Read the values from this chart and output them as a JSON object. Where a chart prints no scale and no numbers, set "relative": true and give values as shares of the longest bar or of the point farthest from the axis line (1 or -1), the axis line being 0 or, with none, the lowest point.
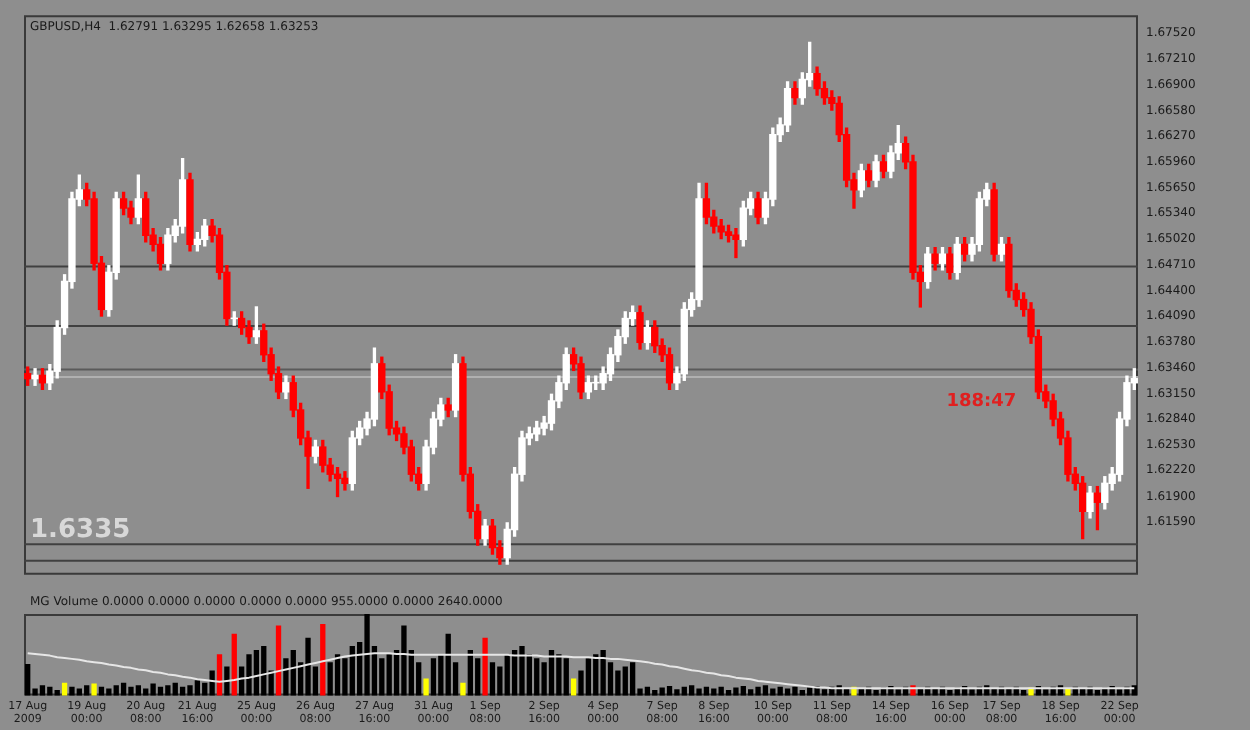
{
  "chart_data": [
    {
      "type": "candlestick",
      "tick_labels": "y",
      "grid": false,
      "ylim": [
        1.6095,
        1.6774
      ],
      "yticks": [
        {
          "value": 1.6752,
          "label": "1.67520"
        },
        {
          "value": 1.6721,
          "label": "1.67210"
        },
        {
          "value": 1.669,
          "label": "1.66900"
        },
        {
          "value": 1.6658,
          "label": "1.66580"
        },
        {
          "value": 1.6627,
          "label": "1.66270"
        },
        {
          "value": 1.6596,
          "label": "1.65960"
        },
        {
          "value": 1.6565,
          "label": "1.65650"
        },
        {
          "value": 1.6534,
          "label": "1.65340"
        },
        {
          "value": 1.6502,
          "label": "1.65020"
        },
        {
          "value": 1.6471,
          "label": "1.64710"
        },
        {
          "value": 1.644,
          "label": "1.64400"
        },
        {
          "value": 1.6409,
          "label": "1.64090"
        },
        {
          "value": 1.6378,
          "label": "1.63780"
        },
        {
          "value": 1.6346,
          "label": "1.63460"
        },
        {
          "value": 1.6315,
          "label": "1.63150"
        },
        {
          "value": 1.6284,
          "label": "1.62840"
        },
        {
          "value": 1.6253,
          "label": "1.62530"
        },
        {
          "value": 1.6222,
          "label": "1.62220"
        },
        {
          "value": 1.619,
          "label": "1.61900"
        },
        {
          "value": 1.6159,
          "label": "1.61590"
        }
      ],
      "categories": [
        null,
        null,
        null,
        null,
        null,
        null,
        null,
        null,
        null,
        null,
        null,
        null,
        null,
        null,
        null,
        null,
        null,
        null,
        null,
        null,
        null,
        null,
        null,
        null,
        null,
        null,
        null,
        null,
        null,
        null,
        null,
        null,
        null,
        null,
        null,
        null,
        null,
        null,
        null,
        null,
        null,
        null,
        null,
        null,
        null,
        null,
        null,
        null,
        null,
        null,
        null,
        null,
        null,
        null,
        null,
        null,
        null,
        null,
        null,
        null,
        null,
        null,
        null,
        null,
        null,
        null,
        null,
        null,
        null,
        null,
        null,
        null,
        null,
        null,
        null,
        null,
        null,
        null,
        null,
        null,
        null,
        null,
        null,
        null,
        null,
        null,
        null,
        null,
        null,
        null,
        null,
        null,
        null,
        null,
        null,
        null,
        null,
        null,
        null,
        null,
        null,
        null,
        null,
        null,
        null,
        null,
        null,
        null,
        null,
        null,
        null,
        null,
        null,
        null,
        null,
        null,
        null,
        null,
        null,
        null,
        null,
        null,
        null,
        null,
        null,
        null,
        null,
        null,
        null,
        null,
        null,
        null,
        null,
        null,
        null,
        null,
        null,
        null,
        null,
        null,
        null,
        null,
        null,
        null,
        null,
        null,
        null,
        null,
        null,
        null,
        null
      ],
      "ohlc": [
        [
          1.6339,
          1.6347,
          1.6325,
          1.6333
        ],
        [
          1.6333,
          1.6345,
          1.6325,
          1.6337
        ],
        [
          1.6337,
          1.6345,
          1.632,
          1.6328
        ],
        [
          1.6328,
          1.635,
          1.632,
          1.6342
        ],
        [
          1.6342,
          1.6403,
          1.6334,
          1.6395
        ],
        [
          1.6395,
          1.6459,
          1.6387,
          1.6451
        ],
        [
          1.6451,
          1.6559,
          1.6443,
          1.6551
        ],
        [
          1.6551,
          1.658,
          1.6543,
          1.6562
        ],
        [
          1.6562,
          1.657,
          1.6543,
          1.6551
        ],
        [
          1.6551,
          1.6559,
          1.6465,
          1.6473
        ],
        [
          1.6473,
          1.6481,
          1.6409,
          1.6417
        ],
        [
          1.6417,
          1.647,
          1.6409,
          1.6462
        ],
        [
          1.6462,
          1.6559,
          1.6454,
          1.6551
        ],
        [
          1.6551,
          1.6559,
          1.6532,
          1.654
        ],
        [
          1.654,
          1.6548,
          1.6521,
          1.6529
        ],
        [
          1.6529,
          1.658,
          1.6521,
          1.6551
        ],
        [
          1.6551,
          1.6559,
          1.6499,
          1.6507
        ],
        [
          1.6507,
          1.6515,
          1.6488,
          1.6496
        ],
        [
          1.6496,
          1.6504,
          1.6465,
          1.6473
        ],
        [
          1.6473,
          1.6515,
          1.6465,
          1.6507
        ],
        [
          1.6507,
          1.6526,
          1.6499,
          1.6518
        ],
        [
          1.6518,
          1.66,
          1.651,
          1.6574
        ],
        [
          1.6574,
          1.6582,
          1.6488,
          1.6496
        ],
        [
          1.6496,
          1.651,
          1.6488,
          1.6502
        ],
        [
          1.6502,
          1.6526,
          1.6494,
          1.6518
        ],
        [
          1.6518,
          1.6526,
          1.6499,
          1.6507
        ],
        [
          1.6507,
          1.6515,
          1.6454,
          1.6462
        ],
        [
          1.6462,
          1.647,
          1.6398,
          1.6406
        ],
        [
          1.6406,
          1.6414,
          1.6398,
          1.6406
        ],
        [
          1.6406,
          1.6414,
          1.6387,
          1.6395
        ],
        [
          1.6395,
          1.6403,
          1.6376,
          1.6384
        ],
        [
          1.6384,
          1.642,
          1.6376,
          1.6391
        ],
        [
          1.6391,
          1.6399,
          1.6354,
          1.6362
        ],
        [
          1.6362,
          1.637,
          1.6331,
          1.6339
        ],
        [
          1.6339,
          1.6347,
          1.6309,
          1.6317
        ],
        [
          1.6317,
          1.6336,
          1.6309,
          1.6328
        ],
        [
          1.6328,
          1.6336,
          1.6287,
          1.6295
        ],
        [
          1.6295,
          1.6303,
          1.6253,
          1.6261
        ],
        [
          1.6261,
          1.6269,
          1.62,
          1.6239
        ],
        [
          1.6239,
          1.6258,
          1.6231,
          1.625
        ],
        [
          1.625,
          1.6258,
          1.622,
          1.6228
        ],
        [
          1.6228,
          1.6236,
          1.6209,
          1.6217
        ],
        [
          1.6217,
          1.6225,
          1.619,
          1.6212
        ],
        [
          1.6212,
          1.622,
          1.6198,
          1.6206
        ],
        [
          1.6206,
          1.6269,
          1.6198,
          1.6261
        ],
        [
          1.6261,
          1.6281,
          1.6253,
          1.6273
        ],
        [
          1.6273,
          1.6292,
          1.6265,
          1.6284
        ],
        [
          1.6284,
          1.637,
          1.6276,
          1.6351
        ],
        [
          1.6351,
          1.6359,
          1.6309,
          1.6317
        ],
        [
          1.6317,
          1.6325,
          1.6265,
          1.6273
        ],
        [
          1.6273,
          1.6281,
          1.6258,
          1.6266
        ],
        [
          1.6266,
          1.6274,
          1.6242,
          1.625
        ],
        [
          1.625,
          1.6258,
          1.6209,
          1.6217
        ],
        [
          1.6217,
          1.6225,
          1.6198,
          1.6206
        ],
        [
          1.6206,
          1.6258,
          1.6198,
          1.625
        ],
        [
          1.625,
          1.6292,
          1.6242,
          1.6284
        ],
        [
          1.6284,
          1.6309,
          1.6276,
          1.6301
        ],
        [
          1.6301,
          1.6309,
          1.6287,
          1.6295
        ],
        [
          1.6295,
          1.6362,
          1.6287,
          1.6351
        ],
        [
          1.6351,
          1.6359,
          1.6209,
          1.6217
        ],
        [
          1.6217,
          1.6225,
          1.6164,
          1.6172
        ],
        [
          1.6172,
          1.618,
          1.6131,
          1.6139
        ],
        [
          1.6139,
          1.6162,
          1.6131,
          1.6154
        ],
        [
          1.6154,
          1.6162,
          1.612,
          1.6128
        ],
        [
          1.6128,
          1.6136,
          1.6108,
          1.6116
        ],
        [
          1.6116,
          1.6158,
          1.6108,
          1.615
        ],
        [
          1.615,
          1.6225,
          1.6142,
          1.6217
        ],
        [
          1.6217,
          1.6269,
          1.6209,
          1.6261
        ],
        [
          1.6261,
          1.6274,
          1.6253,
          1.6266
        ],
        [
          1.6266,
          1.6281,
          1.6258,
          1.6273
        ],
        [
          1.6273,
          1.6287,
          1.6265,
          1.6279
        ],
        [
          1.6279,
          1.6314,
          1.6271,
          1.6306
        ],
        [
          1.6306,
          1.6336,
          1.6298,
          1.6328
        ],
        [
          1.6328,
          1.637,
          1.632,
          1.6362
        ],
        [
          1.6362,
          1.637,
          1.6343,
          1.6351
        ],
        [
          1.6351,
          1.6359,
          1.6309,
          1.6317
        ],
        [
          1.6317,
          1.6336,
          1.6309,
          1.6328
        ],
        [
          1.6328,
          1.6336,
          1.632,
          1.6328
        ],
        [
          1.6328,
          1.6347,
          1.632,
          1.6339
        ],
        [
          1.6339,
          1.637,
          1.6331,
          1.6362
        ],
        [
          1.6362,
          1.6392,
          1.6354,
          1.6384
        ],
        [
          1.6384,
          1.6414,
          1.6376,
          1.6406
        ],
        [
          1.6406,
          1.6421,
          1.6398,
          1.6413
        ],
        [
          1.6413,
          1.6421,
          1.6369,
          1.6377
        ],
        [
          1.6377,
          1.6403,
          1.6369,
          1.6395
        ],
        [
          1.6395,
          1.6403,
          1.6365,
          1.6373
        ],
        [
          1.6373,
          1.6381,
          1.6354,
          1.6362
        ],
        [
          1.6362,
          1.637,
          1.632,
          1.6328
        ],
        [
          1.6328,
          1.6347,
          1.632,
          1.6339
        ],
        [
          1.6339,
          1.6425,
          1.6331,
          1.6417
        ],
        [
          1.6417,
          1.6437,
          1.6409,
          1.6429
        ],
        [
          1.6429,
          1.657,
          1.6421,
          1.6551
        ],
        [
          1.6551,
          1.657,
          1.6521,
          1.6529
        ],
        [
          1.6529,
          1.6537,
          1.651,
          1.6518
        ],
        [
          1.6518,
          1.6526,
          1.6503,
          1.6511
        ],
        [
          1.6511,
          1.6519,
          1.6499,
          1.6507
        ],
        [
          1.6507,
          1.6515,
          1.648,
          1.6502
        ],
        [
          1.6502,
          1.6548,
          1.6494,
          1.654
        ],
        [
          1.654,
          1.6559,
          1.6532,
          1.6551
        ],
        [
          1.6551,
          1.6559,
          1.6521,
          1.6529
        ],
        [
          1.6529,
          1.6559,
          1.6521,
          1.6551
        ],
        [
          1.6551,
          1.6637,
          1.6543,
          1.6629
        ],
        [
          1.6629,
          1.6649,
          1.6621,
          1.6641
        ],
        [
          1.6641,
          1.6693,
          1.6633,
          1.6685
        ],
        [
          1.6685,
          1.6693,
          1.6666,
          1.6674
        ],
        [
          1.6674,
          1.6704,
          1.6666,
          1.6696
        ],
        [
          1.6696,
          1.6741,
          1.6688,
          1.6703
        ],
        [
          1.6703,
          1.6711,
          1.6677,
          1.6685
        ],
        [
          1.6685,
          1.6693,
          1.6666,
          1.6674
        ],
        [
          1.6674,
          1.6682,
          1.6659,
          1.6667
        ],
        [
          1.6667,
          1.6675,
          1.6621,
          1.6629
        ],
        [
          1.6629,
          1.6637,
          1.6566,
          1.6574
        ],
        [
          1.6574,
          1.6582,
          1.654,
          1.6562
        ],
        [
          1.6562,
          1.6593,
          1.6554,
          1.6585
        ],
        [
          1.6585,
          1.6593,
          1.6566,
          1.6574
        ],
        [
          1.6574,
          1.6604,
          1.6566,
          1.6596
        ],
        [
          1.6596,
          1.6604,
          1.6577,
          1.6585
        ],
        [
          1.6585,
          1.6615,
          1.6577,
          1.6607
        ],
        [
          1.6607,
          1.664,
          1.6599,
          1.6618
        ],
        [
          1.6618,
          1.6626,
          1.6588,
          1.6596
        ],
        [
          1.6596,
          1.6604,
          1.6454,
          1.6462
        ],
        [
          1.6462,
          1.647,
          1.642,
          1.6451
        ],
        [
          1.6451,
          1.6492,
          1.6443,
          1.6484
        ],
        [
          1.6484,
          1.6492,
          1.6465,
          1.6473
        ],
        [
          1.6473,
          1.6492,
          1.6465,
          1.6484
        ],
        [
          1.6484,
          1.6492,
          1.6454,
          1.6462
        ],
        [
          1.6462,
          1.6504,
          1.6454,
          1.6496
        ],
        [
          1.6496,
          1.6504,
          1.6476,
          1.6484
        ],
        [
          1.6484,
          1.6504,
          1.6476,
          1.6496
        ],
        [
          1.6496,
          1.6559,
          1.6488,
          1.6551
        ],
        [
          1.6551,
          1.657,
          1.6543,
          1.6562
        ],
        [
          1.6562,
          1.657,
          1.6476,
          1.6484
        ],
        [
          1.6484,
          1.6504,
          1.6476,
          1.6496
        ],
        [
          1.6496,
          1.6504,
          1.6432,
          1.644
        ],
        [
          1.644,
          1.6448,
          1.6421,
          1.6429
        ],
        [
          1.6429,
          1.6437,
          1.6409,
          1.6417
        ],
        [
          1.6417,
          1.6425,
          1.6376,
          1.6384
        ],
        [
          1.6384,
          1.6392,
          1.6309,
          1.6317
        ],
        [
          1.6317,
          1.6325,
          1.6298,
          1.6306
        ],
        [
          1.6306,
          1.6314,
          1.6276,
          1.6284
        ],
        [
          1.6284,
          1.6292,
          1.6253,
          1.6261
        ],
        [
          1.6261,
          1.6269,
          1.6209,
          1.6217
        ],
        [
          1.6217,
          1.6225,
          1.6198,
          1.6206
        ],
        [
          1.6206,
          1.6214,
          1.6139,
          1.6172
        ],
        [
          1.6172,
          1.6202,
          1.6164,
          1.6194
        ],
        [
          1.6194,
          1.6202,
          1.615,
          1.6183
        ],
        [
          1.6183,
          1.6214,
          1.6175,
          1.6206
        ],
        [
          1.6206,
          1.6225,
          1.6198,
          1.6217
        ],
        [
          1.6217,
          1.6292,
          1.6209,
          1.6284
        ],
        [
          1.6284,
          1.6336,
          1.6276,
          1.6328
        ],
        [
          1.6328,
          1.6345,
          1.632,
          1.6333
        ]
      ],
      "colors": [
        "#ff0000",
        "#ffffff",
        "#ff0000",
        "#ffffff",
        "#ffffff",
        "#ffffff",
        "#ffffff",
        "#ffffff",
        "#ff0000",
        "#ff0000",
        "#ff0000",
        "#ffffff",
        "#ffffff",
        "#ff0000",
        "#ff0000",
        "#ffffff",
        "#ff0000",
        "#ff0000",
        "#ff0000",
        "#ffffff",
        "#ffffff",
        "#ffffff",
        "#ff0000",
        "#ffffff",
        "#ffffff",
        "#ff0000",
        "#ff0000",
        "#ff0000",
        "#ffffff",
        "#ff0000",
        "#ff0000",
        "#ffffff",
        "#ff0000",
        "#ff0000",
        "#ff0000",
        "#ffffff",
        "#ff0000",
        "#ff0000",
        "#ff0000",
        "#ffffff",
        "#ff0000",
        "#ff0000",
        "#ff0000",
        "#ff0000",
        "#ffffff",
        "#ffffff",
        "#ffffff",
        "#ffffff",
        "#ff0000",
        "#ff0000",
        "#ff0000",
        "#ff0000",
        "#ff0000",
        "#ff0000",
        "#ffffff",
        "#ffffff",
        "#ffffff",
        "#ff0000",
        "#ffffff",
        "#ff0000",
        "#ff0000",
        "#ff0000",
        "#ffffff",
        "#ff0000",
        "#ff0000",
        "#ffffff",
        "#ffffff",
        "#ffffff",
        "#ffffff",
        "#ffffff",
        "#ffffff",
        "#ffffff",
        "#ffffff",
        "#ffffff",
        "#ff0000",
        "#ff0000",
        "#ffffff",
        "#ffffff",
        "#ffffff",
        "#ffffff",
        "#ffffff",
        "#ffffff",
        "#ffffff",
        "#ff0000",
        "#ffffff",
        "#ff0000",
        "#ff0000",
        "#ff0000",
        "#ffffff",
        "#ffffff",
        "#ffffff",
        "#ffffff",
        "#ff0000",
        "#ff0000",
        "#ff0000",
        "#ff0000",
        "#ff0000",
        "#ffffff",
        "#ffffff",
        "#ff0000",
        "#ffffff",
        "#ffffff",
        "#ffffff",
        "#ffffff",
        "#ff0000",
        "#ffffff",
        "#ffffff",
        "#ff0000",
        "#ff0000",
        "#ff0000",
        "#ff0000",
        "#ff0000",
        "#ff0000",
        "#ffffff",
        "#ff0000",
        "#ffffff",
        "#ff0000",
        "#ffffff",
        "#ffffff",
        "#ff0000",
        "#ff0000",
        "#ff0000",
        "#ffffff",
        "#ff0000",
        "#ffffff",
        "#ff0000",
        "#ffffff",
        "#ff0000",
        "#ffffff",
        "#ffffff",
        "#ffffff",
        "#ff0000",
        "#ffffff",
        "#ff0000",
        "#ff0000",
        "#ff0000",
        "#ff0000",
        "#ff0000",
        "#ff0000",
        "#ff0000",
        "#ff0000",
        "#ff0000",
        "#ff0000",
        "#ff0000",
        "#ffffff",
        "#ff0000",
        "#ffffff",
        "#ffffff",
        "#ffffff",
        "#ffffff",
        "#ffffff"
      ],
      "ref_lines": [
        {
          "axis": "y",
          "value": 1.6469,
          "color": "#404040"
        },
        {
          "axis": "y",
          "value": 1.6397,
          "color": "#404040"
        },
        {
          "axis": "y",
          "value": 1.6344,
          "color": "#5a5a5a"
        },
        {
          "axis": "y",
          "value": 1.6335,
          "color": "#b0b0b0"
        },
        {
          "axis": "y",
          "value": 1.6132,
          "color": "#404040"
        },
        {
          "axis": "y",
          "value": 1.6112,
          "color": "#404040"
        }
      ],
      "annotations": [
        "GBPUSD,H4  1.62791 1.63295 1.62658 1.63253",
        "1.6335",
        "188:47"
      ]
    },
    {
      "type": "bar",
      "relative": true,
      "tick_labels": "x",
      "grid": false,
      "categories": [
        "17 Aug 2009",
        null,
        null,
        null,
        null,
        null,
        null,
        null,
        "19 Aug 00:00",
        null,
        null,
        null,
        null,
        null,
        null,
        null,
        "20 Aug 08:00",
        null,
        null,
        null,
        null,
        null,
        null,
        "21 Aug 16:00",
        null,
        null,
        null,
        null,
        null,
        null,
        null,
        "25 Aug 00:00",
        null,
        null,
        null,
        null,
        null,
        null,
        null,
        "26 Aug 08:00",
        null,
        null,
        null,
        null,
        null,
        null,
        null,
        "27 Aug 16:00",
        null,
        null,
        null,
        null,
        null,
        null,
        null,
        "31 Aug 00:00",
        null,
        null,
        null,
        null,
        null,
        null,
        "1 Sep 08:00",
        null,
        null,
        null,
        null,
        null,
        null,
        null,
        "2 Sep 16:00",
        null,
        null,
        null,
        null,
        null,
        null,
        null,
        "4 Sep 00:00",
        null,
        null,
        null,
        null,
        null,
        null,
        null,
        "7 Sep 08:00",
        null,
        null,
        null,
        null,
        null,
        null,
        "8 Sep 16:00",
        null,
        null,
        null,
        null,
        null,
        null,
        null,
        "10 Sep 00:00",
        null,
        null,
        null,
        null,
        null,
        null,
        null,
        "11 Sep 08:00",
        null,
        null,
        null,
        null,
        null,
        null,
        null,
        "14 Sep 16:00",
        null,
        null,
        null,
        null,
        null,
        null,
        null,
        "16 Sep 00:00",
        null,
        null,
        null,
        null,
        null,
        null,
        "17 Sep 08:00",
        null,
        null,
        null,
        null,
        null,
        null,
        null,
        "18 Sep 16:00",
        null,
        null,
        null,
        null,
        null,
        null,
        null,
        "22 Sep 00:00",
        null,
        null
      ],
      "series": [
        {
          "type": "bar",
          "values": [
            0.38,
            0.08,
            0.12,
            0.1,
            0.06,
            0.15,
            0.1,
            0.08,
            0.12,
            0.14,
            0.1,
            0.08,
            0.12,
            0.15,
            0.1,
            0.12,
            0.08,
            0.14,
            0.1,
            0.12,
            0.15,
            0.1,
            0.12,
            0.18,
            0.15,
            0.3,
            0.5,
            0.35,
            0.75,
            0.35,
            0.5,
            0.55,
            0.6,
            0.3,
            0.85,
            0.45,
            0.55,
            0.4,
            0.7,
            0.35,
            0.87,
            0.4,
            0.5,
            0.45,
            0.6,
            0.65,
            1.0,
            0.6,
            0.45,
            0.5,
            0.55,
            0.85,
            0.55,
            0.4,
            0.2,
            0.45,
            0.5,
            0.75,
            0.4,
            0.15,
            0.55,
            0.45,
            0.7,
            0.4,
            0.35,
            0.5,
            0.55,
            0.6,
            0.5,
            0.45,
            0.4,
            0.55,
            0.5,
            0.45,
            0.2,
            0.3,
            0.45,
            0.5,
            0.55,
            0.4,
            0.3,
            0.35,
            0.4,
            0.08,
            0.1,
            0.06,
            0.09,
            0.11,
            0.07,
            0.1,
            0.12,
            0.08,
            0.1,
            0.08,
            0.1,
            0.06,
            0.09,
            0.11,
            0.07,
            0.1,
            0.12,
            0.08,
            0.1,
            0.08,
            0.1,
            0.06,
            0.09,
            0.11,
            0.07,
            0.1,
            0.12,
            0.08,
            0.1,
            0.08,
            0.1,
            0.06,
            0.09,
            0.11,
            0.07,
            0.1,
            0.12,
            0.08,
            0.1,
            0.08,
            0.1,
            0.06,
            0.09,
            0.11,
            0.07,
            0.1,
            0.12,
            0.08,
            0.1,
            0.08,
            0.1,
            0.06,
            0.09,
            0.11,
            0.07,
            0.1,
            0.12,
            0.08,
            0.1,
            0.08,
            0.1,
            0.06,
            0.09,
            0.11,
            0.07,
            0.1,
            0.12
          ],
          "colors": [
            "#000000",
            "#000000",
            "#000000",
            "#000000",
            "#000000",
            "#ffff00",
            "#000000",
            "#000000",
            "#000000",
            "#ffff00",
            "#000000",
            "#000000",
            "#000000",
            "#000000",
            "#000000",
            "#000000",
            "#000000",
            "#000000",
            "#000000",
            "#000000",
            "#000000",
            "#000000",
            "#000000",
            "#000000",
            "#000000",
            "#000000",
            "#ff0000",
            "#000000",
            "#ff0000",
            "#000000",
            "#000000",
            "#000000",
            "#000000",
            "#000000",
            "#ff0000",
            "#000000",
            "#000000",
            "#000000",
            "#000000",
            "#000000",
            "#ff0000",
            "#000000",
            "#000000",
            "#000000",
            "#000000",
            "#000000",
            "#000000",
            "#000000",
            "#000000",
            "#000000",
            "#000000",
            "#000000",
            "#000000",
            "#000000",
            "#ffff00",
            "#000000",
            "#000000",
            "#000000",
            "#000000",
            "#ffff00",
            "#000000",
            "#000000",
            "#ff0000",
            "#000000",
            "#000000",
            "#000000",
            "#000000",
            "#000000",
            "#000000",
            "#000000",
            "#000000",
            "#000000",
            "#000000",
            "#000000",
            "#ffff00",
            "#000000",
            "#000000",
            "#000000",
            "#000000",
            "#000000",
            "#000000",
            "#000000",
            "#000000",
            "#000000",
            "#000000",
            "#000000",
            "#000000",
            "#000000",
            "#000000",
            "#000000",
            "#000000",
            "#000000",
            "#000000",
            "#000000",
            "#000000",
            "#000000",
            "#000000",
            "#000000",
            "#000000",
            "#000000",
            "#000000",
            "#000000",
            "#000000",
            "#000000",
            "#000000",
            "#000000",
            "#000000",
            "#000000",
            "#000000",
            "#000000",
            "#000000",
            "#000000",
            "#ffff00",
            "#000000",
            "#000000",
            "#000000",
            "#000000",
            "#000000",
            "#000000",
            "#000000",
            "#ff0000",
            "#000000",
            "#000000",
            "#000000",
            "#000000",
            "#000000",
            "#000000",
            "#000000",
            "#000000",
            "#000000",
            "#000000",
            "#000000",
            "#000000",
            "#000000",
            "#000000",
            "#000000",
            "#ffff00",
            "#000000",
            "#000000",
            "#000000",
            "#000000",
            "#ffff00",
            "#000000",
            "#000000",
            "#000000",
            "#000000",
            "#000000",
            "#000000",
            "#000000",
            "#000000",
            "#000000"
          ]
        },
        {
          "type": "line",
          "color": "#e6e6e6",
          "values": [
            0.52,
            0.51,
            0.5,
            0.49,
            0.47,
            0.46,
            0.45,
            0.44,
            0.42,
            0.41,
            0.4,
            0.38,
            0.37,
            0.35,
            0.34,
            0.32,
            0.31,
            0.29,
            0.28,
            0.26,
            0.25,
            0.23,
            0.22,
            0.2,
            0.19,
            0.18,
            0.17,
            0.18,
            0.19,
            0.21,
            0.22,
            0.24,
            0.26,
            0.28,
            0.3,
            0.32,
            0.34,
            0.36,
            0.38,
            0.4,
            0.42,
            0.44,
            0.46,
            0.48,
            0.49,
            0.5,
            0.51,
            0.52,
            0.52,
            0.52,
            0.51,
            0.51,
            0.5,
            0.5,
            0.5,
            0.5,
            0.5,
            0.5,
            0.5,
            0.5,
            0.5,
            0.5,
            0.5,
            0.5,
            0.5,
            0.5,
            0.49,
            0.49,
            0.49,
            0.49,
            0.48,
            0.48,
            0.48,
            0.48,
            0.47,
            0.47,
            0.47,
            0.46,
            0.46,
            0.45,
            0.45,
            0.44,
            0.43,
            0.42,
            0.41,
            0.39,
            0.38,
            0.36,
            0.35,
            0.33,
            0.31,
            0.3,
            0.28,
            0.27,
            0.25,
            0.24,
            0.22,
            0.21,
            0.2,
            0.18,
            0.17,
            0.16,
            0.15,
            0.14,
            0.13,
            0.12,
            0.11,
            0.1,
            0.1,
            0.09,
            0.09,
            0.09,
            0.09,
            0.09,
            0.09,
            0.09,
            0.09,
            0.09,
            0.09,
            0.09,
            0.09,
            0.09,
            0.09,
            0.09,
            0.09,
            0.09,
            0.09,
            0.09,
            0.09,
            0.09,
            0.09,
            0.09,
            0.09,
            0.09,
            0.09,
            0.09,
            0.09,
            0.09,
            0.09,
            0.09,
            0.09,
            0.09,
            0.09,
            0.09,
            0.09,
            0.09,
            0.09,
            0.09,
            0.09,
            0.09,
            0.09
          ]
        }
      ],
      "annotations": [
        "MG Volume 0.0000 0.0000 0.0000 0.0000 0.0000 955.0000 0.0000 2640.0000"
      ]
    }
  ]
}
